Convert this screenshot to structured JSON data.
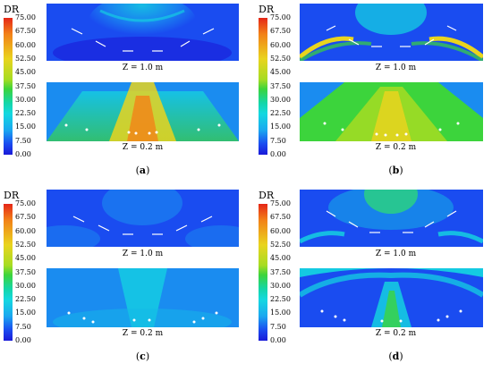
{
  "panels": [
    {
      "id": "a",
      "cbar_title": "DR",
      "top_label": "Z = 1.0 m",
      "bottom_label": "Z = 0.2 m",
      "panel_label": "(a)",
      "panel_letter": "a"
    },
    {
      "id": "b",
      "cbar_title": "DR",
      "top_label": "Z = 1.0 m",
      "bottom_label": "Z = 0.2 m",
      "panel_label": "(b)",
      "panel_letter": "b"
    },
    {
      "id": "c",
      "cbar_title": "DR",
      "top_label": "Z = 1.0 m",
      "bottom_label": "Z = 0.2 m",
      "panel_label": "(c)",
      "panel_letter": "c"
    },
    {
      "id": "d",
      "cbar_title": "DR",
      "top_label": "Z = 1.0 m",
      "bottom_label": "Z = 0.2 m",
      "panel_label": "(d)",
      "panel_letter": "d"
    }
  ],
  "colorbar_ticks": [
    "75.00",
    "67.50",
    "60.00",
    "52.50",
    "45.00",
    "37.50",
    "30.00",
    "22.50",
    "15.00",
    "7.50",
    "0.00"
  ],
  "colors": {
    "blue_dark": "#1a1ad8",
    "blue": "#1a4cf0",
    "cyan": "#14d8e0",
    "green": "#3cd43c",
    "yellow": "#e9d41e",
    "orange": "#f28218",
    "red": "#e52618"
  }
}
